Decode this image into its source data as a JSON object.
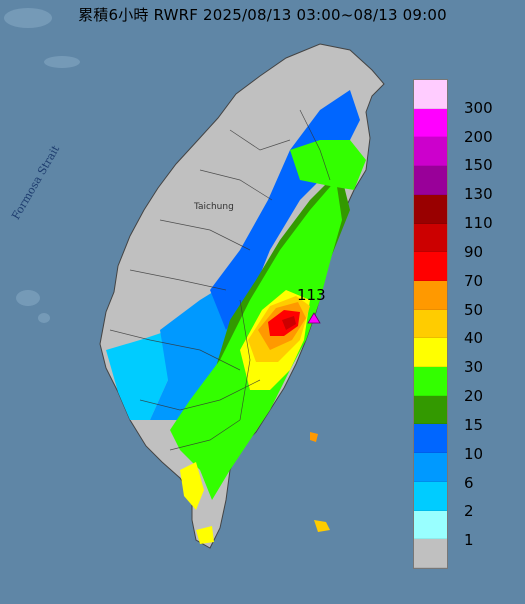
{
  "map": {
    "title": "累積6小時 RWRF 2025/08/13 03:00~08/13 09:00",
    "strait_label": "Formosa Strait",
    "city_label": "Taichung",
    "max_value_label": "113"
  },
  "legend": [
    {
      "label": "300",
      "color": "#ffccff"
    },
    {
      "label": "200",
      "color": "#ff00ff"
    },
    {
      "label": "150",
      "color": "#cc00cc"
    },
    {
      "label": "130",
      "color": "#990099"
    },
    {
      "label": "110",
      "color": "#990000"
    },
    {
      "label": "90",
      "color": "#cc0000"
    },
    {
      "label": "70",
      "color": "#ff0000"
    },
    {
      "label": "50",
      "color": "#ff9900"
    },
    {
      "label": "40",
      "color": "#ffcc00"
    },
    {
      "label": "30",
      "color": "#ffff00"
    },
    {
      "label": "20",
      "color": "#33ff00"
    },
    {
      "label": "15",
      "color": "#339900"
    },
    {
      "label": "10",
      "color": "#0066ff"
    },
    {
      "label": "6",
      "color": "#0099ff"
    },
    {
      "label": "2",
      "color": "#00ccff"
    },
    {
      "label": "1",
      "color": "#99ffff"
    },
    {
      "label": "",
      "color": "#c0c0c0"
    }
  ],
  "colors": {
    "sea": "#5f86a6",
    "land": "#ececec",
    "no_rain": "#c0c0c0",
    "max_marker": "#ff00ff"
  }
}
